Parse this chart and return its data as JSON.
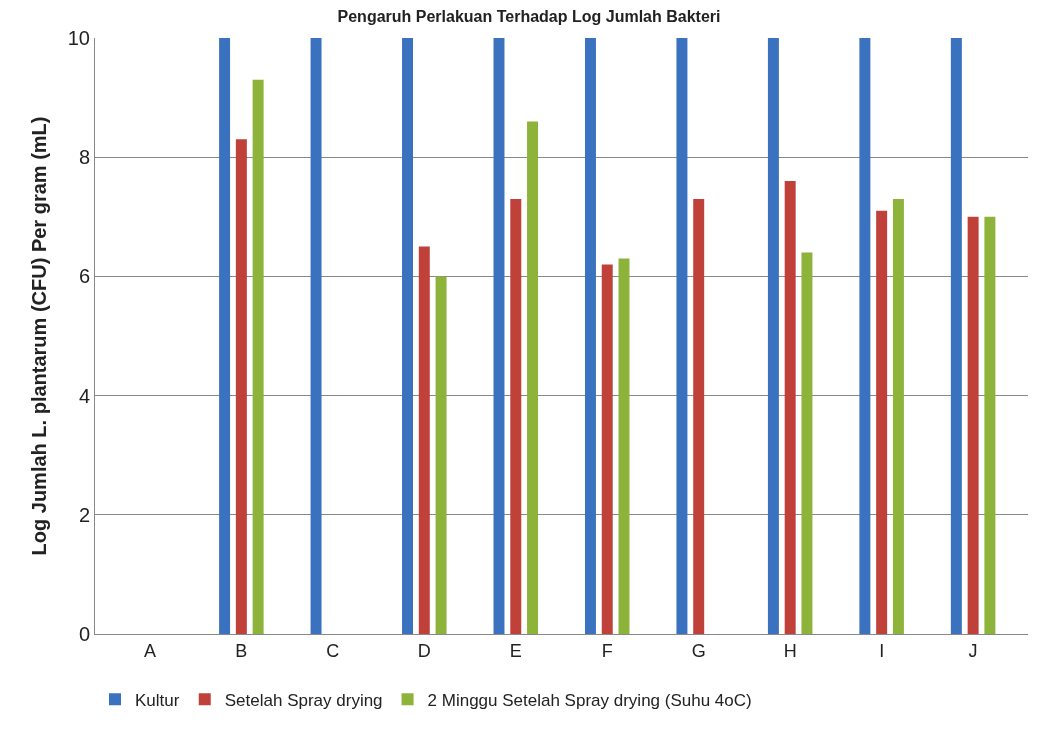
{
  "chart_data": {
    "type": "bar",
    "title": "Pengaruh Perlakuan Terhadap Log Jumlah Bakteri",
    "ylabel": "Log Jumlah L. plantarum (CFU) Per gram (mL)",
    "categories": [
      "A",
      "B",
      "C",
      "D",
      "E",
      "F",
      "G",
      "H",
      "I",
      "J"
    ],
    "series": [
      {
        "name": "Kultur",
        "color": "#3a72c0",
        "values": [
          0,
          10,
          10,
          10,
          10,
          10,
          10,
          10,
          10,
          10
        ]
      },
      {
        "name": "Setelah Spray drying",
        "color": "#c0403a",
        "values": [
          0,
          8.3,
          0,
          6.5,
          7.3,
          6.2,
          7.3,
          7.6,
          7.1,
          7.0
        ]
      },
      {
        "name": "2 Minggu Setelah Spray drying (Suhu 4oC)",
        "color": "#8db33a",
        "values": [
          0,
          9.3,
          0,
          6.0,
          8.6,
          6.3,
          0,
          6.4,
          7.3,
          7.0
        ]
      }
    ],
    "ylim": [
      0,
      10
    ],
    "yticks": [
      0,
      2,
      4,
      6,
      8,
      10
    ],
    "grid": "y",
    "legend": "bottom"
  }
}
